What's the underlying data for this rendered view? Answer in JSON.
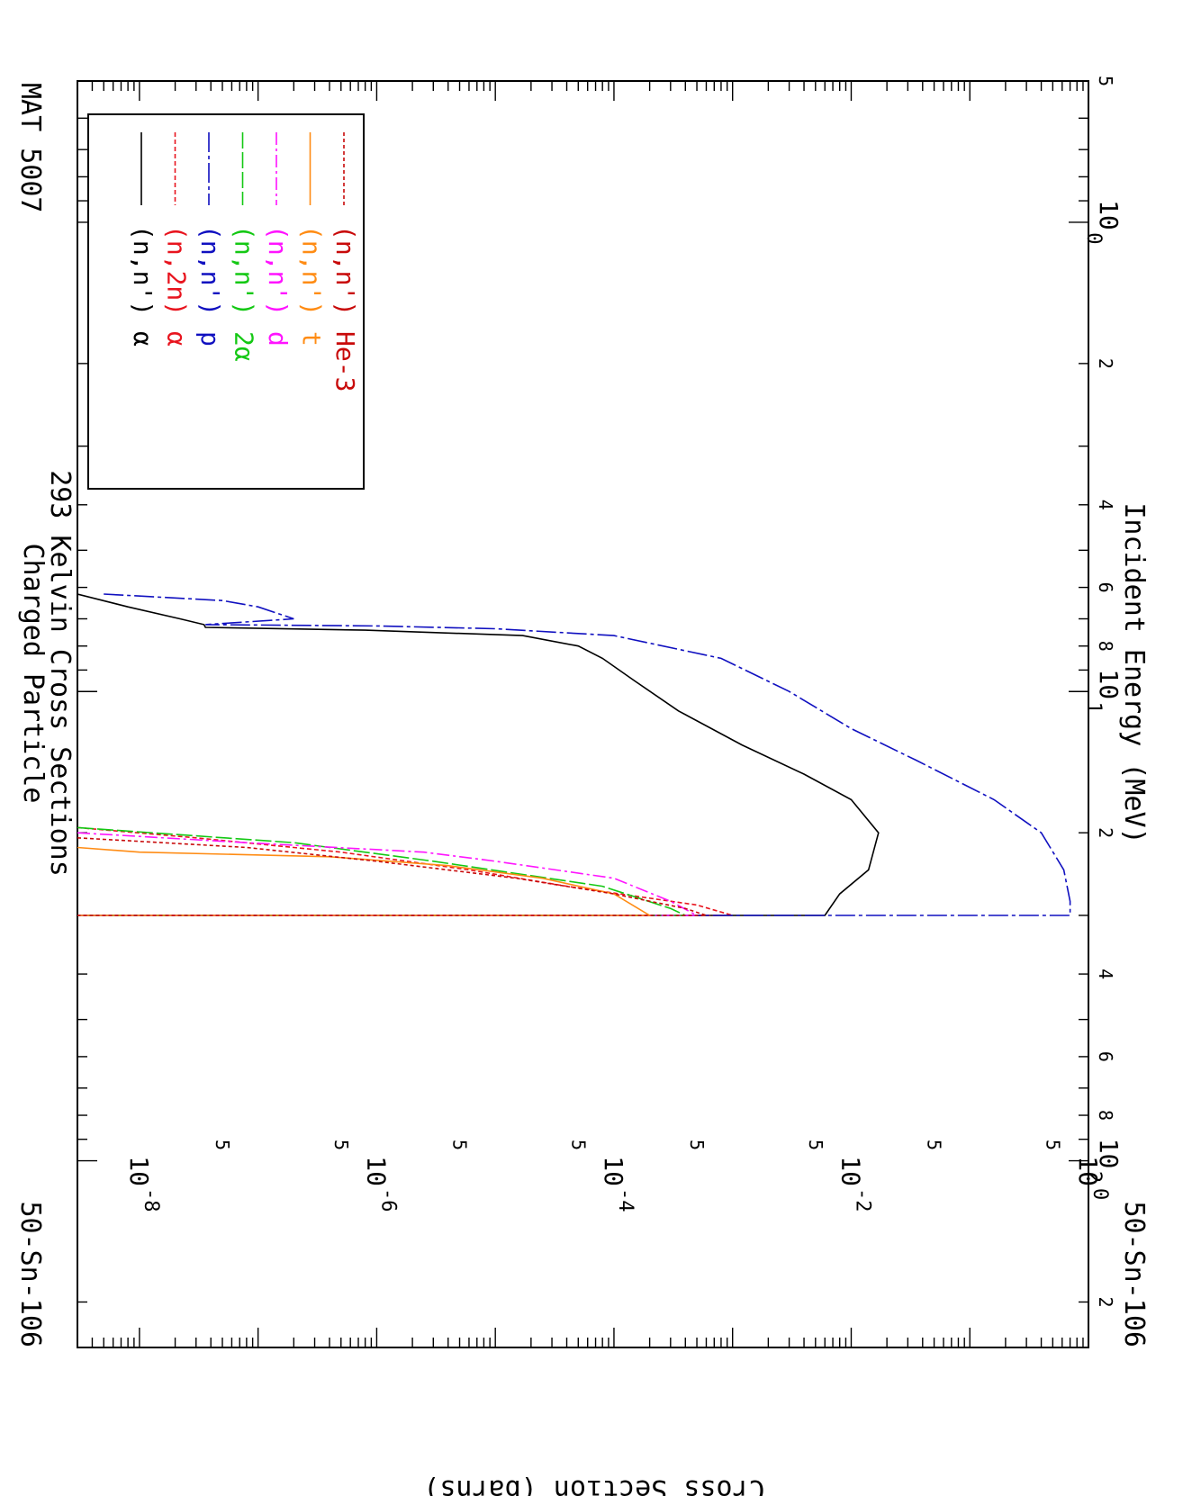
{
  "chart_data": {
    "type": "line",
    "title": "Charged Particle",
    "subtitle": "293 Kelvin Cross Sections",
    "material_label": "MAT 5007",
    "isotope_label": "50-Sn-106",
    "xlabel": "Incident Energy (MeV)",
    "ylabel": "Cross Section (barns)",
    "x_scale": "log",
    "y_scale": "log",
    "xlim": [
      0.5,
      250
    ],
    "ylim": [
      3e-09,
      1
    ],
    "x_major_tick_labels": [
      {
        "value": 1,
        "base": "10",
        "exp": "0"
      },
      {
        "value": 10,
        "base": "10",
        "exp": "1"
      },
      {
        "value": 100,
        "base": "10",
        "exp": "2"
      }
    ],
    "x_minor_tick_labels": [
      {
        "value": 0.5,
        "label": "5"
      },
      {
        "value": 2,
        "label": "2"
      },
      {
        "value": 4,
        "label": "4"
      },
      {
        "value": 6,
        "label": "6"
      },
      {
        "value": 8,
        "label": "8"
      },
      {
        "value": 20,
        "label": "2"
      },
      {
        "value": 40,
        "label": "4"
      },
      {
        "value": 60,
        "label": "6"
      },
      {
        "value": 80,
        "label": "8"
      },
      {
        "value": 200,
        "label": "2"
      }
    ],
    "y_major_tick_labels": [
      {
        "value": 1,
        "base": "10",
        "exp": "0"
      },
      {
        "value": 0.01,
        "base": "10",
        "exp": "-2"
      },
      {
        "value": 0.0001,
        "base": "10",
        "exp": "-4"
      },
      {
        "value": 1e-06,
        "base": "10",
        "exp": "-6"
      },
      {
        "value": 1e-08,
        "base": "10",
        "exp": "-8"
      }
    ],
    "y_minor_tick_labels": [
      {
        "value": 0.5,
        "label": "5"
      },
      {
        "value": 0.05,
        "label": "5"
      },
      {
        "value": 0.005,
        "label": "5"
      },
      {
        "value": 0.0005,
        "label": "5"
      },
      {
        "value": 5e-05,
        "label": "5"
      },
      {
        "value": 5e-06,
        "label": "5"
      },
      {
        "value": 5e-07,
        "label": "5"
      },
      {
        "value": 5e-08,
        "label": "5"
      }
    ],
    "legend": {
      "position": "bottom-left",
      "entries": [
        {
          "prefix": "(n,n')",
          "particle": "α"
        },
        {
          "prefix": "(n,2n)",
          "particle": "α"
        },
        {
          "prefix": "(n,n')",
          "particle": "p"
        },
        {
          "prefix": "(n,n')",
          "particle": "2α"
        },
        {
          "prefix": "(n,n')",
          "particle": "d"
        },
        {
          "prefix": "(n,n')",
          "particle": "t"
        },
        {
          "prefix": "(n,n')",
          "particle": "He-3"
        }
      ]
    },
    "series": [
      {
        "color": "#000000",
        "dash": "",
        "points": [
          [
            6.2,
            3e-09
          ],
          [
            6.6,
            8e-09
          ],
          [
            7.0,
            2.2e-08
          ],
          [
            7.2,
            3.5e-08
          ],
          [
            7.3,
            3.6e-08
          ],
          [
            7.4,
            8e-07
          ],
          [
            7.6,
            1.7e-05
          ],
          [
            8.0,
            5e-05
          ],
          [
            8.5,
            8e-05
          ],
          [
            9.5,
            0.00015
          ],
          [
            11,
            0.00035
          ],
          [
            13,
            0.0012
          ],
          [
            15,
            0.004
          ],
          [
            17,
            0.01
          ],
          [
            20,
            0.017
          ],
          [
            24,
            0.014
          ],
          [
            27,
            0.008
          ],
          [
            30,
            0.006
          ],
          [
            30,
            3e-09
          ]
        ]
      },
      {
        "color": "#e8141e",
        "dash": "5,3",
        "points": [
          [
            19.5,
            3e-09
          ],
          [
            20.5,
            3e-08
          ],
          [
            22,
            5e-07
          ],
          [
            24,
            6e-06
          ],
          [
            26,
            4e-05
          ],
          [
            28.5,
            0.0005
          ],
          [
            30,
            0.001
          ],
          [
            30,
            3e-09
          ]
        ]
      },
      {
        "color": "#1010c0",
        "dash": "22,4,4,4",
        "points": [
          [
            6.2,
            5e-09
          ],
          [
            6.4,
            5e-08
          ],
          [
            6.6,
            1e-07
          ],
          [
            7.0,
            2e-07
          ],
          [
            7.2,
            3.6e-08
          ],
          [
            7.25,
            1e-06
          ],
          [
            7.35,
            1e-05
          ],
          [
            7.6,
            0.0001
          ],
          [
            8.5,
            0.0008
          ],
          [
            10,
            0.003
          ],
          [
            12,
            0.01
          ],
          [
            14,
            0.035
          ],
          [
            17,
            0.16
          ],
          [
            20,
            0.4
          ],
          [
            24,
            0.62
          ],
          [
            28,
            0.7
          ],
          [
            30,
            0.7
          ],
          [
            30,
            3e-09
          ]
        ]
      },
      {
        "color": "#14c814",
        "dash": "18,4",
        "points": [
          [
            19.5,
            3e-09
          ],
          [
            21,
            2e-07
          ],
          [
            23,
            3e-06
          ],
          [
            26,
            8e-05
          ],
          [
            29,
            0.0003
          ],
          [
            30,
            0.0004
          ],
          [
            30,
            3e-09
          ]
        ]
      },
      {
        "color": "#ff14ff",
        "dash": "14,4,3,4",
        "points": [
          [
            20,
            3e-09
          ],
          [
            21,
            8e-08
          ],
          [
            22,
            2.5e-06
          ],
          [
            23,
            1e-05
          ],
          [
            25,
            0.0001
          ],
          [
            28,
            0.0003
          ],
          [
            30,
            0.0005
          ],
          [
            30,
            3e-09
          ]
        ]
      },
      {
        "color": "#ff8c14",
        "dash": "",
        "points": [
          [
            21.5,
            3e-09
          ],
          [
            22,
            1e-08
          ],
          [
            22.5,
            4e-07
          ],
          [
            23.5,
            4e-06
          ],
          [
            25,
            2.5e-05
          ],
          [
            27,
            0.0001
          ],
          [
            30,
            0.0002
          ],
          [
            30,
            3e-09
          ]
        ]
      },
      {
        "color": "#c80a0a",
        "dash": "4,3",
        "points": [
          [
            20.5,
            3e-09
          ],
          [
            21.5,
            8e-08
          ],
          [
            23,
            1e-06
          ],
          [
            25,
            1.5e-05
          ],
          [
            27,
            0.0001
          ],
          [
            29,
            0.0004
          ],
          [
            30,
            0.0006
          ],
          [
            30,
            3e-09
          ]
        ]
      }
    ]
  }
}
